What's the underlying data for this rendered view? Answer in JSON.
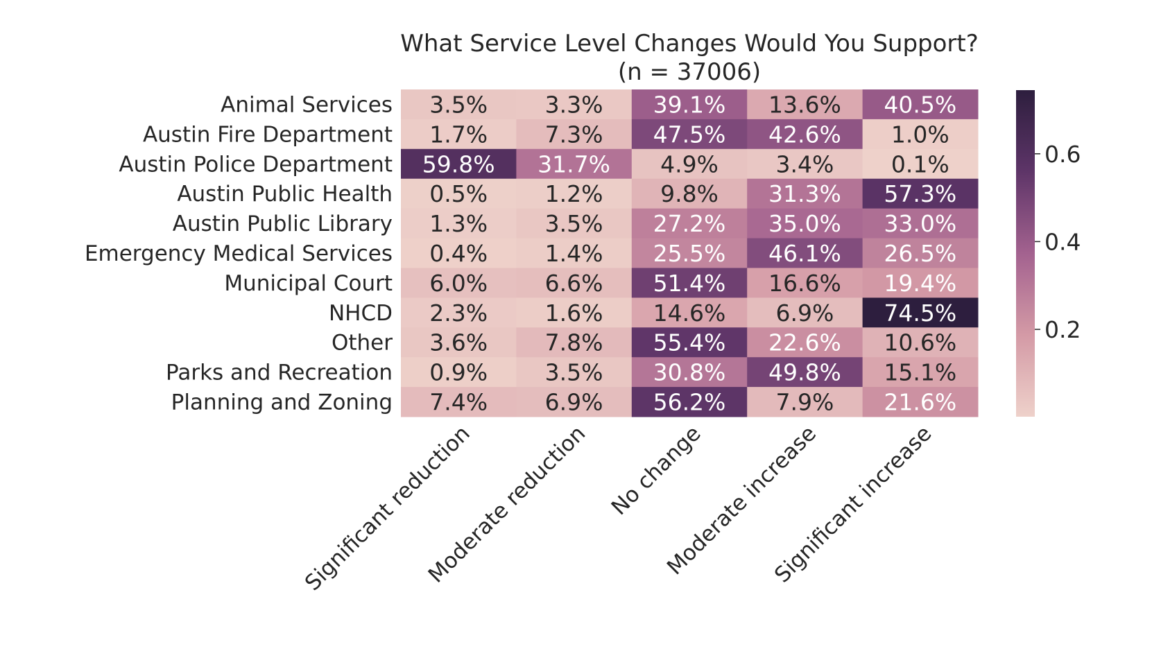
{
  "chart_data": {
    "type": "heatmap",
    "title": "What Service Level Changes Would You Support?",
    "subtitle": "(n = 37006)",
    "rows": [
      "Animal Services",
      "Austin Fire Department",
      "Austin Police Department",
      "Austin Public Health",
      "Austin Public Library",
      "Emergency Medical Services",
      "Municipal Court",
      "NHCD",
      "Other",
      "Parks and Recreation",
      "Planning and Zoning"
    ],
    "columns": [
      "Significant reduction",
      "Moderate reduction",
      "No change",
      "Moderate increase",
      "Significant increase"
    ],
    "values": [
      [
        0.035,
        0.033,
        0.391,
        0.136,
        0.405
      ],
      [
        0.017,
        0.073,
        0.475,
        0.426,
        0.01
      ],
      [
        0.598,
        0.317,
        0.049,
        0.034,
        0.001
      ],
      [
        0.005,
        0.012,
        0.098,
        0.313,
        0.573
      ],
      [
        0.013,
        0.035,
        0.272,
        0.35,
        0.33
      ],
      [
        0.004,
        0.014,
        0.255,
        0.461,
        0.265
      ],
      [
        0.06,
        0.066,
        0.514,
        0.166,
        0.194
      ],
      [
        0.023,
        0.016,
        0.146,
        0.069,
        0.745
      ],
      [
        0.036,
        0.078,
        0.554,
        0.226,
        0.106
      ],
      [
        0.009,
        0.035,
        0.308,
        0.498,
        0.151
      ],
      [
        0.074,
        0.069,
        0.562,
        0.079,
        0.216
      ]
    ],
    "cell_labels": [
      [
        "3.5%",
        "3.3%",
        "39.1%",
        "13.6%",
        "40.5%"
      ],
      [
        "1.7%",
        "7.3%",
        "47.5%",
        "42.6%",
        "1.0%"
      ],
      [
        "59.8%",
        "31.7%",
        "4.9%",
        "3.4%",
        "0.1%"
      ],
      [
        "0.5%",
        "1.2%",
        "9.8%",
        "31.3%",
        "57.3%"
      ],
      [
        "1.3%",
        "3.5%",
        "27.2%",
        "35.0%",
        "33.0%"
      ],
      [
        "0.4%",
        "1.4%",
        "25.5%",
        "46.1%",
        "26.5%"
      ],
      [
        "6.0%",
        "6.6%",
        "51.4%",
        "16.6%",
        "19.4%"
      ],
      [
        "2.3%",
        "1.6%",
        "14.6%",
        "6.9%",
        "74.5%"
      ],
      [
        "3.6%",
        "7.8%",
        "55.4%",
        "22.6%",
        "10.6%"
      ],
      [
        "0.9%",
        "3.5%",
        "30.8%",
        "49.8%",
        "15.1%"
      ],
      [
        "7.4%",
        "6.9%",
        "56.2%",
        "7.9%",
        "21.6%"
      ]
    ],
    "colorbar": {
      "ticks": [
        0.2,
        0.4,
        0.6
      ],
      "tick_labels": [
        "0.2",
        "0.4",
        "0.6"
      ],
      "range": [
        0.001,
        0.745
      ]
    },
    "colormap": [
      "#eed1ca",
      "#d49aa6",
      "#a3628f",
      "#5e3568",
      "#2d1e3e"
    ],
    "annotation_colors": {
      "dark": "#262626",
      "light": "#ffffff"
    }
  }
}
